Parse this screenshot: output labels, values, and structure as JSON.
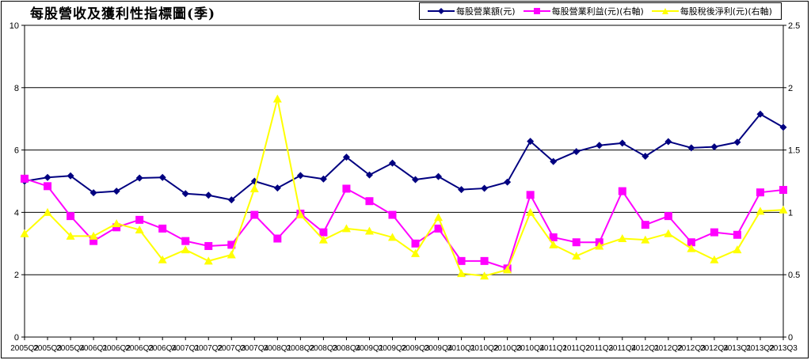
{
  "chart_data": {
    "type": "line",
    "title": "每股營收及獲利性指標圖(季)",
    "categories": [
      "2005Q2",
      "2005Q3",
      "2005Q4",
      "2006Q1",
      "2006Q2",
      "2006Q3",
      "2006Q4",
      "2007Q1",
      "2007Q2",
      "2007Q3",
      "2007Q4",
      "2008Q1",
      "2008Q2",
      "2008Q3",
      "2008Q4",
      "2009Q1",
      "2009Q2",
      "2009Q3",
      "2009Q4",
      "2010Q1",
      "2010Q2",
      "2010Q3",
      "2010Q4",
      "2011Q1",
      "2011Q2",
      "2011Q3",
      "2011Q4",
      "2012Q1",
      "2012Q2",
      "2012Q3",
      "2012Q4",
      "2013Q1",
      "2013Q2",
      "2013Q3"
    ],
    "x_tick_labels": [
      "2005Q2",
      "2005Q3",
      "2005Q4",
      "2006Q1",
      "2006Q2",
      "2006Q3",
      "2006Q4",
      "2007Q1",
      "2007Q2",
      "2007Q3",
      "2007Q4",
      "2008Q1",
      "2008Q2",
      "2008Q3",
      "2008Q4",
      "2009Q1",
      "2009Q2",
      "2009Q3",
      "2009Q4",
      "2010Q1",
      "2010Q2",
      "2010Q3",
      "2010Q4",
      "2011Q1",
      "2011Q2",
      "2011Q3",
      "2011Q4",
      "2012Q1",
      "2012Q2",
      "2012Q3",
      "2012Q4",
      "2013Q1",
      "2013Q2",
      "2013Q3"
    ],
    "ylim": [
      0,
      10
    ],
    "y_ticks": [
      "0",
      "2",
      "4",
      "6",
      "8",
      "10"
    ],
    "y2lim": [
      0,
      2.5
    ],
    "y2_ticks": [
      "0",
      "0.5",
      "1",
      "1.5",
      "2",
      "2.5"
    ],
    "grid": true,
    "legend_position": "top-right",
    "series": [
      {
        "name": "每股營業額(元)",
        "axis": "left",
        "color": "#000080",
        "marker": "diamond",
        "values": [
          5.0,
          5.12,
          5.17,
          4.63,
          4.68,
          5.1,
          5.12,
          4.6,
          4.55,
          4.4,
          5.0,
          4.78,
          5.18,
          5.07,
          5.77,
          5.2,
          5.58,
          5.05,
          5.15,
          4.73,
          4.77,
          4.97,
          6.28,
          5.63,
          5.95,
          6.15,
          6.22,
          5.8,
          6.27,
          6.07,
          6.1,
          6.25,
          7.15,
          6.73
        ]
      },
      {
        "name": "每股營業利益(元)(右軸)",
        "axis": "right",
        "color": "#ff00ff",
        "marker": "square",
        "values": [
          1.27,
          1.21,
          0.97,
          0.77,
          0.88,
          0.94,
          0.87,
          0.77,
          0.73,
          0.74,
          0.98,
          0.79,
          0.99,
          0.84,
          1.19,
          1.09,
          0.98,
          0.75,
          0.87,
          0.61,
          0.61,
          0.55,
          1.14,
          0.8,
          0.76,
          0.76,
          1.17,
          0.9,
          0.97,
          0.76,
          0.84,
          0.82,
          1.16,
          1.18
        ]
      },
      {
        "name": "每股稅後淨利(元)(右軸)",
        "axis": "right",
        "color": "#ffff00",
        "marker": "triangle",
        "values": [
          0.83,
          1.0,
          0.81,
          0.81,
          0.91,
          0.86,
          0.62,
          0.7,
          0.61,
          0.66,
          1.19,
          1.91,
          0.98,
          0.78,
          0.87,
          0.85,
          0.8,
          0.67,
          0.96,
          0.51,
          0.49,
          0.54,
          1.0,
          0.74,
          0.65,
          0.73,
          0.79,
          0.78,
          0.83,
          0.71,
          0.62,
          0.7,
          1.01,
          1.02
        ]
      }
    ]
  }
}
